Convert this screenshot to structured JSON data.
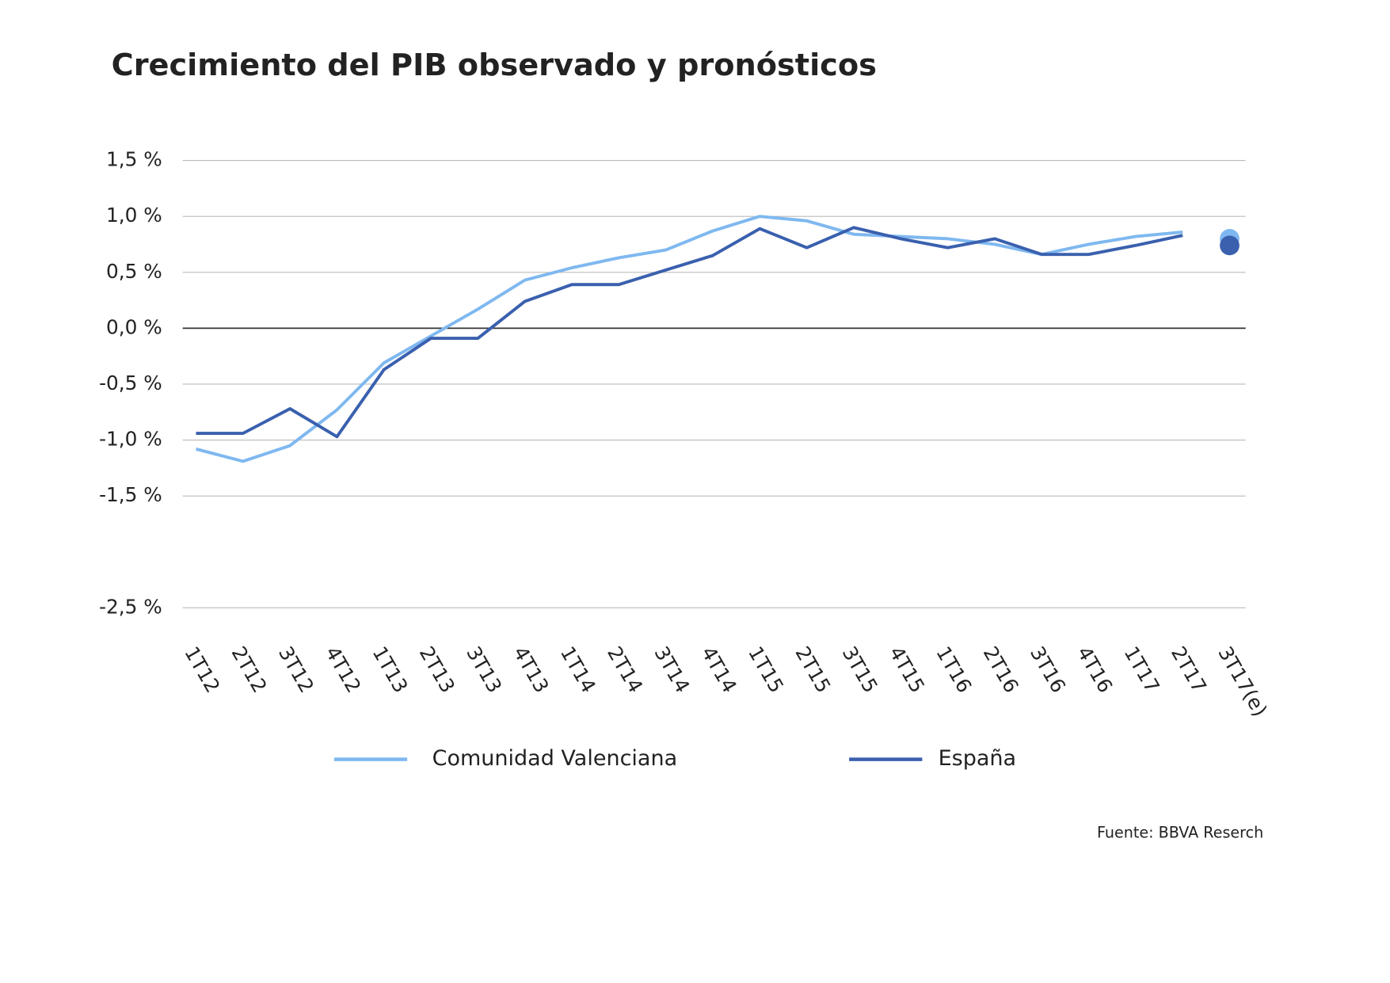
{
  "chart_data": {
    "type": "line",
    "title": "Crecimiento del PIB observado y pronósticos",
    "source": "Fuente: BBVA Reserch",
    "categories": [
      "1T12",
      "2T12",
      "3T12",
      "4T12",
      "1T13",
      "2T13",
      "3T13",
      "4T13",
      "1T14",
      "2T14",
      "3T14",
      "4T14",
      "1T15",
      "2T15",
      "3T15",
      "4T15",
      "1T16",
      "2T16",
      "3T16",
      "4T16",
      "1T17",
      "2T17",
      "3T17(e)"
    ],
    "series": [
      {
        "name": "Comunidad Valenciana",
        "color": "#7fb8f0",
        "values": [
          -1.08,
          -1.19,
          -1.05,
          -0.73,
          -0.31,
          -0.07,
          0.17,
          0.43,
          0.54,
          0.63,
          0.7,
          0.87,
          1.0,
          0.96,
          0.84,
          0.82,
          0.8,
          0.75,
          0.66,
          0.75,
          0.82,
          0.86,
          0.8
        ]
      },
      {
        "name": "España",
        "color": "#3a60ae",
        "values": [
          -0.94,
          -0.94,
          -0.72,
          -0.97,
          -0.37,
          -0.09,
          -0.09,
          0.24,
          0.39,
          0.39,
          0.52,
          0.65,
          0.89,
          0.72,
          0.9,
          0.8,
          0.72,
          0.8,
          0.66,
          0.66,
          0.74,
          0.83,
          0.74
        ]
      }
    ],
    "ylim": [
      -2.5,
      1.5
    ],
    "yticks": [
      {
        "value": 1.5,
        "label": "1,5 %"
      },
      {
        "value": 1.0,
        "label": "1,0 %"
      },
      {
        "value": 0.5,
        "label": "0,5 %"
      },
      {
        "value": 0.0,
        "label": "0,0 %"
      },
      {
        "value": -0.5,
        "label": "-0,5 %"
      },
      {
        "value": -1.0,
        "label": "-1,0 %"
      },
      {
        "value": -1.5,
        "label": "-1,5 %"
      },
      {
        "value": -2.5,
        "label": "-2,5 %"
      }
    ],
    "grid": true,
    "forecast_last": true,
    "legend": "bottom"
  }
}
